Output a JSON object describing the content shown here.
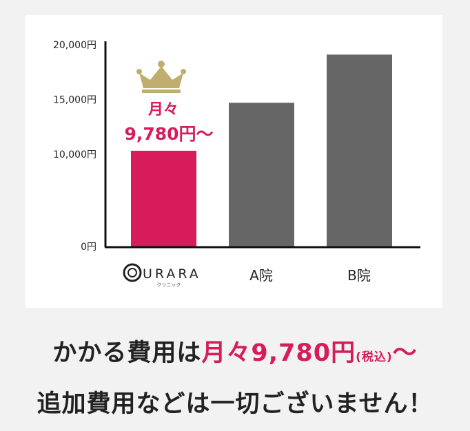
{
  "chart_data": {
    "type": "bar",
    "categories": [
      "URARA クリニック",
      "A院",
      "B院"
    ],
    "values": [
      9780,
      14700,
      19100
    ],
    "yticks": [
      "0円",
      "10,000円",
      "15,000円",
      "20,000円"
    ],
    "ytick_values": [
      0,
      10000,
      15000,
      20000
    ],
    "ylim": [
      0,
      20000
    ],
    "grid": false,
    "highlight": {
      "category": "URARA クリニック",
      "label_line1": "月々",
      "label_line2": "9,780円〜",
      "icon": "crown-icon"
    },
    "colors": {
      "highlight": "#d81b5a",
      "other": "#666666",
      "crown": "#bfae6e"
    }
  },
  "logo": {
    "name": "URARA",
    "sub": "クリニック"
  },
  "caption": {
    "line1_a": "かかる費用は",
    "line1_b": "月々9,780円",
    "line1_c": "(税込)",
    "line1_d": "〜",
    "line2": "追加費用などは一切ございません！"
  }
}
